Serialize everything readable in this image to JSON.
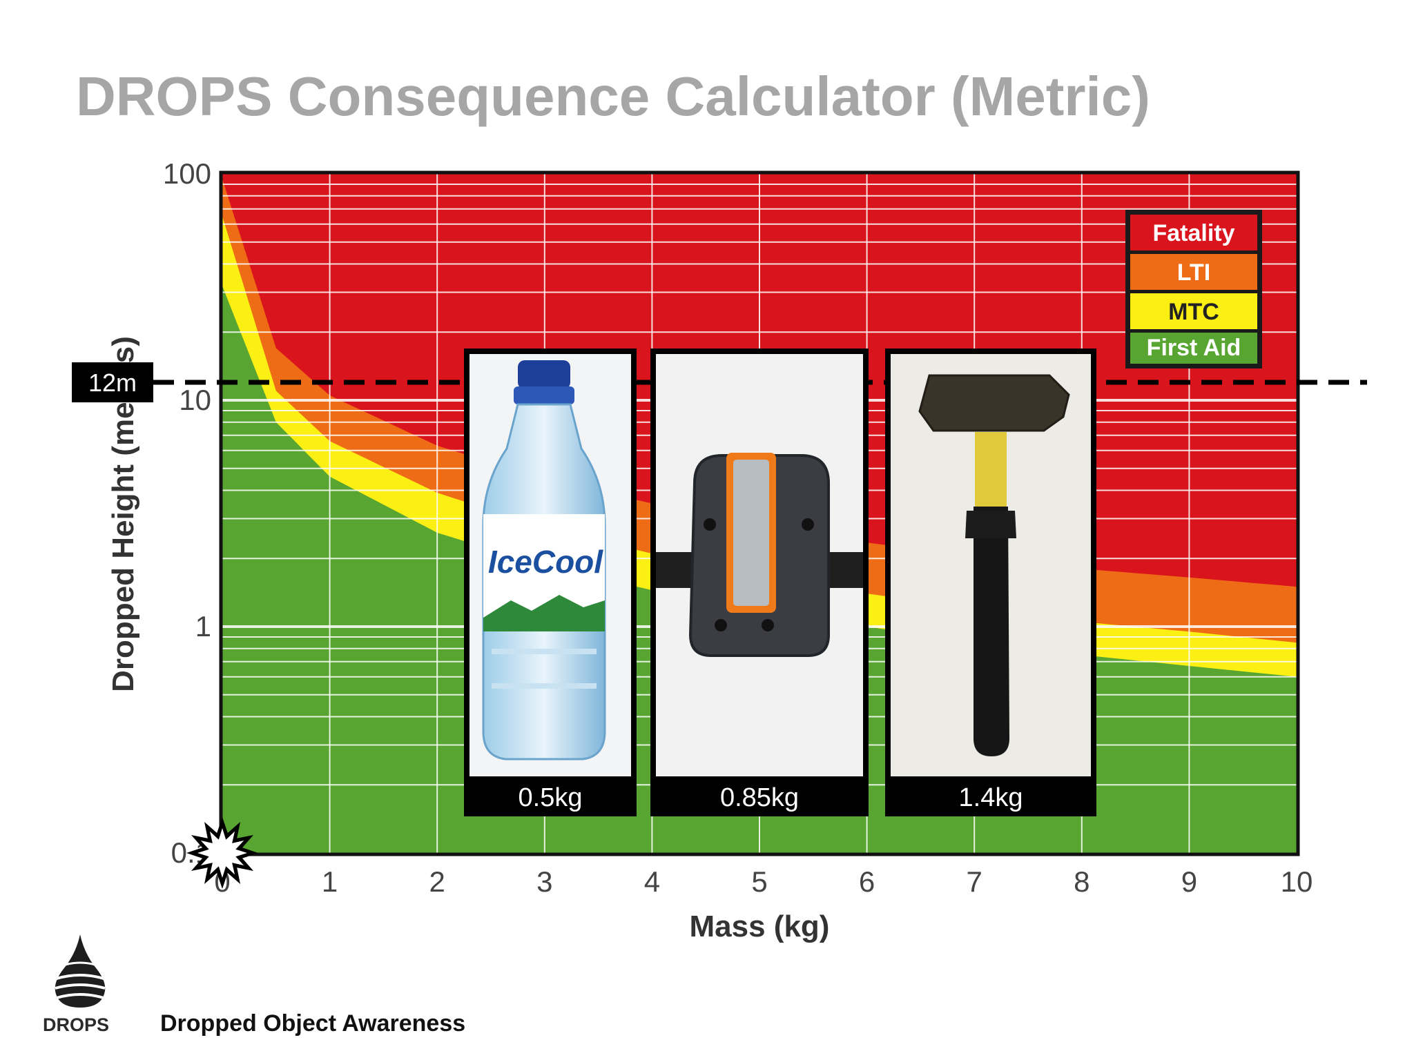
{
  "title": "DROPS Consequence Calculator (Metric)",
  "footer": {
    "brand": "DROPS",
    "tagline": "Dropped Object Awareness"
  },
  "colors": {
    "fatality": "#d9141c",
    "lti": "#ef6c16",
    "mtc": "#fcef14",
    "first_aid": "#58a532",
    "title": "#a6a6a6"
  },
  "icons": {
    "logo": "drops-droplet-logo",
    "impact": "impact-burst-icon"
  },
  "chart_data": {
    "type": "area",
    "xlabel": "Mass (kg)",
    "ylabel": "Dropped Height (metres)",
    "xlim": [
      0,
      10
    ],
    "ylim": [
      0.1,
      100
    ],
    "y_scale": "log",
    "grid": true,
    "x_ticks": [
      "0",
      "1",
      "2",
      "3",
      "4",
      "5",
      "6",
      "7",
      "8",
      "9",
      "10"
    ],
    "y_ticks": [
      {
        "value": 100,
        "label": "100"
      },
      {
        "value": 10,
        "label": "10"
      },
      {
        "value": 1,
        "label": "1"
      },
      {
        "value": 0.1,
        "label": "0.1"
      }
    ],
    "legend": {
      "placement": "top-right",
      "entries": [
        {
          "name": "Fatality",
          "color": "#d9141c"
        },
        {
          "name": "LTI",
          "color": "#ef6c16"
        },
        {
          "name": "MTC",
          "color": "#fcef14"
        },
        {
          "name": "First Aid",
          "color": "#58a532"
        }
      ]
    },
    "boundaries": [
      {
        "above": "LTI",
        "below": "Fatality",
        "points": [
          [
            0,
            95
          ],
          [
            0.5,
            17
          ],
          [
            1,
            10.5
          ],
          [
            2,
            6.3
          ],
          [
            3,
            4.5
          ],
          [
            4,
            3.5
          ],
          [
            5,
            2.8
          ],
          [
            6,
            2.35
          ],
          [
            7,
            2.05
          ],
          [
            8,
            1.8
          ],
          [
            9,
            1.65
          ],
          [
            10,
            1.5
          ]
        ]
      },
      {
        "above": "MTC",
        "below": "LTI",
        "points": [
          [
            0,
            65
          ],
          [
            0.5,
            11
          ],
          [
            1,
            6.6
          ],
          [
            2,
            3.9
          ],
          [
            3,
            2.75
          ],
          [
            4,
            2.1
          ],
          [
            5,
            1.7
          ],
          [
            6,
            1.4
          ],
          [
            7,
            1.2
          ],
          [
            8,
            1.05
          ],
          [
            9,
            0.95
          ],
          [
            10,
            0.85
          ]
        ]
      },
      {
        "above": "First Aid",
        "below": "MTC",
        "points": [
          [
            0,
            32
          ],
          [
            0.5,
            8
          ],
          [
            1,
            4.6
          ],
          [
            2,
            2.6
          ],
          [
            3,
            1.85
          ],
          [
            4,
            1.45
          ],
          [
            5,
            1.2
          ],
          [
            6,
            1.0
          ],
          [
            7,
            0.85
          ],
          [
            8,
            0.75
          ],
          [
            9,
            0.67
          ],
          [
            10,
            0.6
          ]
        ]
      }
    ],
    "reference_line": {
      "value": 12,
      "label": "12m"
    },
    "items": [
      {
        "name": "water-bottle",
        "label": "0.5kg",
        "mass": 0.5,
        "icon": "water-bottle-icon"
      },
      {
        "name": "tool-pouch",
        "label": "0.85kg",
        "mass": 0.85,
        "icon": "tool-pouch-icon"
      },
      {
        "name": "hammer",
        "label": "1.4kg",
        "mass": 1.4,
        "icon": "hammer-icon"
      }
    ]
  }
}
